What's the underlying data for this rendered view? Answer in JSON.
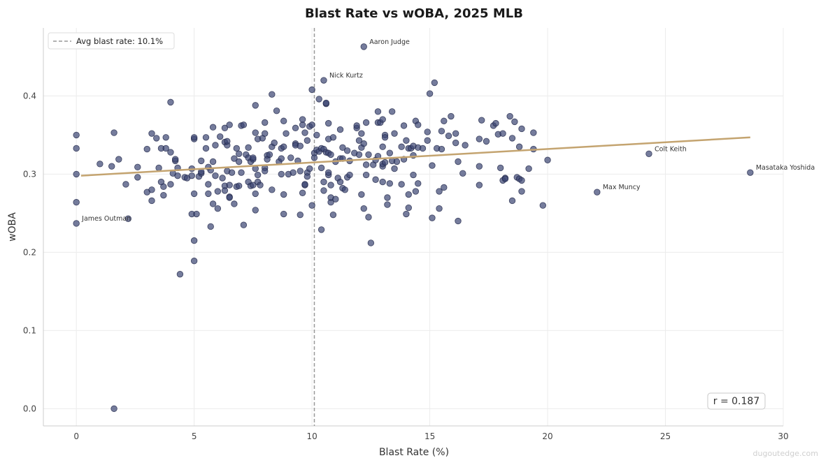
{
  "chart_data": {
    "type": "scatter",
    "title": "Blast Rate vs wOBA, 2025 MLB",
    "xlabel": "Blast Rate (%)",
    "ylabel": "wOBA",
    "xlim": [
      -1.4,
      30
    ],
    "ylim": [
      -0.022,
      0.487
    ],
    "xticks": [
      0,
      5,
      10,
      15,
      20,
      25,
      30
    ],
    "yticks": [
      0.0,
      0.1,
      0.2,
      0.3,
      0.4
    ],
    "xtick_labels": [
      "0",
      "5",
      "10",
      "15",
      "20",
      "25",
      "30"
    ],
    "ytick_labels": [
      "0.0",
      "0.1",
      "0.2",
      "0.3",
      "0.4"
    ],
    "grid": true,
    "point_color": "#3a4572",
    "trend_color": "#c4a470",
    "trendline": {
      "x": [
        0.2,
        28.6
      ],
      "y": [
        0.298,
        0.347
      ]
    },
    "avg_line": {
      "x": 10.1,
      "label": "Avg blast rate: 10.1%",
      "color": "#999999"
    },
    "legend_position": "top-left",
    "correlation_label": "r = 0.187",
    "annotations": [
      {
        "label": "Aaron Judge",
        "x": 12.2,
        "y": 0.463
      },
      {
        "label": "Nick Kurtz",
        "x": 10.5,
        "y": 0.42
      },
      {
        "label": "Colt Keith",
        "x": 24.3,
        "y": 0.326
      },
      {
        "label": "Masataka Yoshida",
        "x": 28.6,
        "y": 0.302
      },
      {
        "label": "Max Muncy",
        "x": 22.1,
        "y": 0.277
      },
      {
        "label": "James Outman",
        "x": 0.0,
        "y": 0.237
      }
    ],
    "points": [
      [
        0,
        0.35
      ],
      [
        0,
        0.333
      ],
      [
        0,
        0.3
      ],
      [
        0,
        0.264
      ],
      [
        0,
        0.237
      ],
      [
        1.0,
        0.313
      ],
      [
        1.5,
        0.31
      ],
      [
        1.6,
        0.353
      ],
      [
        1.6,
        0.0
      ],
      [
        1.8,
        0.319
      ],
      [
        2.1,
        0.287
      ],
      [
        2.2,
        0.243
      ],
      [
        2.6,
        0.296
      ],
      [
        2.6,
        0.309
      ],
      [
        3.0,
        0.332
      ],
      [
        3.0,
        0.277
      ],
      [
        3.2,
        0.352
      ],
      [
        3.2,
        0.28
      ],
      [
        3.2,
        0.266
      ],
      [
        3.4,
        0.346
      ],
      [
        3.5,
        0.308
      ],
      [
        3.6,
        0.333
      ],
      [
        3.6,
        0.29
      ],
      [
        3.7,
        0.284
      ],
      [
        3.7,
        0.273
      ],
      [
        3.8,
        0.333
      ],
      [
        3.8,
        0.347
      ],
      [
        4.0,
        0.392
      ],
      [
        4.0,
        0.328
      ],
      [
        4.0,
        0.287
      ],
      [
        4.1,
        0.301
      ],
      [
        4.2,
        0.317
      ],
      [
        4.2,
        0.319
      ],
      [
        4.3,
        0.308
      ],
      [
        4.3,
        0.298
      ],
      [
        4.4,
        0.172
      ],
      [
        4.6,
        0.296
      ],
      [
        4.7,
        0.295
      ],
      [
        4.9,
        0.298
      ],
      [
        4.9,
        0.307
      ],
      [
        4.9,
        0.249
      ],
      [
        5.0,
        0.275
      ],
      [
        5.0,
        0.215
      ],
      [
        5.0,
        0.189
      ],
      [
        5.0,
        0.345
      ],
      [
        5.0,
        0.347
      ],
      [
        5.1,
        0.249
      ],
      [
        5.2,
        0.297
      ],
      [
        5.3,
        0.317
      ],
      [
        5.3,
        0.301
      ],
      [
        5.3,
        0.303
      ],
      [
        5.5,
        0.333
      ],
      [
        5.5,
        0.347
      ],
      [
        5.6,
        0.309
      ],
      [
        5.6,
        0.287
      ],
      [
        5.6,
        0.275
      ],
      [
        5.7,
        0.233
      ],
      [
        5.7,
        0.305
      ],
      [
        5.8,
        0.262
      ],
      [
        5.8,
        0.316
      ],
      [
        5.8,
        0.36
      ],
      [
        5.9,
        0.337
      ],
      [
        5.9,
        0.298
      ],
      [
        6.0,
        0.256
      ],
      [
        6.0,
        0.278
      ],
      [
        6.1,
        0.348
      ],
      [
        6.2,
        0.295
      ],
      [
        6.3,
        0.285
      ],
      [
        6.3,
        0.359
      ],
      [
        6.3,
        0.341
      ],
      [
        6.3,
        0.279
      ],
      [
        6.4,
        0.337
      ],
      [
        6.4,
        0.342
      ],
      [
        6.4,
        0.304
      ],
      [
        6.5,
        0.271
      ],
      [
        6.5,
        0.27
      ],
      [
        6.5,
        0.286
      ],
      [
        6.5,
        0.363
      ],
      [
        6.6,
        0.302
      ],
      [
        6.7,
        0.262
      ],
      [
        6.7,
        0.32
      ],
      [
        6.8,
        0.333
      ],
      [
        6.8,
        0.284
      ],
      [
        6.9,
        0.326
      ],
      [
        6.9,
        0.316
      ],
      [
        6.9,
        0.285
      ],
      [
        7.0,
        0.302
      ],
      [
        7.0,
        0.362
      ],
      [
        7.1,
        0.235
      ],
      [
        7.1,
        0.363
      ],
      [
        7.2,
        0.325
      ],
      [
        7.3,
        0.29
      ],
      [
        7.3,
        0.334
      ],
      [
        7.3,
        0.321
      ],
      [
        7.4,
        0.285
      ],
      [
        7.4,
        0.316
      ],
      [
        7.5,
        0.319
      ],
      [
        7.5,
        0.321
      ],
      [
        7.5,
        0.286
      ],
      [
        7.6,
        0.388
      ],
      [
        7.6,
        0.353
      ],
      [
        7.6,
        0.307
      ],
      [
        7.6,
        0.275
      ],
      [
        7.6,
        0.254
      ],
      [
        7.7,
        0.29
      ],
      [
        7.7,
        0.299
      ],
      [
        7.7,
        0.345
      ],
      [
        7.8,
        0.286
      ],
      [
        7.9,
        0.346
      ],
      [
        8.0,
        0.308
      ],
      [
        8.0,
        0.366
      ],
      [
        8.0,
        0.304
      ],
      [
        8.0,
        0.352
      ],
      [
        8.1,
        0.324
      ],
      [
        8.1,
        0.319
      ],
      [
        8.2,
        0.325
      ],
      [
        8.3,
        0.28
      ],
      [
        8.3,
        0.335
      ],
      [
        8.3,
        0.402
      ],
      [
        8.4,
        0.34
      ],
      [
        8.5,
        0.381
      ],
      [
        8.6,
        0.316
      ],
      [
        8.7,
        0.3
      ],
      [
        8.7,
        0.333
      ],
      [
        8.7,
        0.32
      ],
      [
        8.8,
        0.249
      ],
      [
        8.8,
        0.274
      ],
      [
        8.8,
        0.335
      ],
      [
        8.8,
        0.368
      ],
      [
        8.9,
        0.352
      ],
      [
        9.0,
        0.3
      ],
      [
        9.1,
        0.321
      ],
      [
        9.2,
        0.302
      ],
      [
        9.3,
        0.339
      ],
      [
        9.3,
        0.337
      ],
      [
        9.3,
        0.359
      ],
      [
        9.4,
        0.317
      ],
      [
        9.5,
        0.336
      ],
      [
        9.5,
        0.248
      ],
      [
        9.5,
        0.304
      ],
      [
        9.6,
        0.363
      ],
      [
        9.6,
        0.37
      ],
      [
        9.6,
        0.276
      ],
      [
        9.7,
        0.286
      ],
      [
        9.7,
        0.287
      ],
      [
        9.7,
        0.353
      ],
      [
        9.8,
        0.343
      ],
      [
        9.8,
        0.302
      ],
      [
        9.8,
        0.297
      ],
      [
        9.9,
        0.361
      ],
      [
        9.9,
        0.307
      ],
      [
        10.0,
        0.408
      ],
      [
        10.0,
        0.363
      ],
      [
        10.0,
        0.26
      ],
      [
        10.1,
        0.327
      ],
      [
        10.1,
        0.321
      ],
      [
        10.2,
        0.35
      ],
      [
        10.2,
        0.331
      ],
      [
        10.3,
        0.396
      ],
      [
        10.3,
        0.329
      ],
      [
        10.4,
        0.333
      ],
      [
        10.4,
        0.308
      ],
      [
        10.4,
        0.229
      ],
      [
        10.5,
        0.42
      ],
      [
        10.5,
        0.332
      ],
      [
        10.5,
        0.29
      ],
      [
        10.5,
        0.279
      ],
      [
        10.6,
        0.39
      ],
      [
        10.6,
        0.391
      ],
      [
        10.6,
        0.328
      ],
      [
        10.7,
        0.365
      ],
      [
        10.7,
        0.345
      ],
      [
        10.7,
        0.299
      ],
      [
        10.7,
        0.327
      ],
      [
        10.7,
        0.302
      ],
      [
        10.8,
        0.264
      ],
      [
        10.8,
        0.325
      ],
      [
        10.8,
        0.286
      ],
      [
        10.8,
        0.27
      ],
      [
        10.9,
        0.248
      ],
      [
        10.9,
        0.347
      ],
      [
        11.0,
        0.268
      ],
      [
        11.0,
        0.316
      ],
      [
        11.1,
        0.295
      ],
      [
        11.2,
        0.357
      ],
      [
        11.2,
        0.32
      ],
      [
        11.2,
        0.29
      ],
      [
        11.3,
        0.282
      ],
      [
        11.3,
        0.334
      ],
      [
        11.3,
        0.32
      ],
      [
        11.4,
        0.28
      ],
      [
        11.5,
        0.296
      ],
      [
        11.5,
        0.33
      ],
      [
        11.6,
        0.317
      ],
      [
        11.6,
        0.299
      ],
      [
        11.8,
        0.327
      ],
      [
        11.9,
        0.359
      ],
      [
        11.9,
        0.362
      ],
      [
        12.0,
        0.343
      ],
      [
        12.0,
        0.325
      ],
      [
        12.1,
        0.334
      ],
      [
        12.1,
        0.352
      ],
      [
        12.1,
        0.274
      ],
      [
        12.2,
        0.463
      ],
      [
        12.2,
        0.339
      ],
      [
        12.2,
        0.256
      ],
      [
        12.3,
        0.299
      ],
      [
        12.3,
        0.366
      ],
      [
        12.3,
        0.312
      ],
      [
        12.4,
        0.245
      ],
      [
        12.4,
        0.325
      ],
      [
        12.5,
        0.212
      ],
      [
        12.6,
        0.312
      ],
      [
        12.7,
        0.318
      ],
      [
        12.7,
        0.293
      ],
      [
        12.8,
        0.38
      ],
      [
        12.8,
        0.366
      ],
      [
        12.8,
        0.323
      ],
      [
        12.9,
        0.366
      ],
      [
        13.0,
        0.31
      ],
      [
        13.0,
        0.335
      ],
      [
        13.0,
        0.37
      ],
      [
        13.0,
        0.313
      ],
      [
        13.0,
        0.29
      ],
      [
        13.1,
        0.315
      ],
      [
        13.1,
        0.35
      ],
      [
        13.1,
        0.347
      ],
      [
        13.2,
        0.261
      ],
      [
        13.2,
        0.27
      ],
      [
        13.3,
        0.288
      ],
      [
        13.3,
        0.327
      ],
      [
        13.4,
        0.38
      ],
      [
        13.4,
        0.317
      ],
      [
        13.5,
        0.352
      ],
      [
        13.5,
        0.307
      ],
      [
        13.6,
        0.316
      ],
      [
        13.8,
        0.335
      ],
      [
        13.8,
        0.287
      ],
      [
        13.9,
        0.362
      ],
      [
        13.9,
        0.319
      ],
      [
        14.0,
        0.249
      ],
      [
        14.0,
        0.343
      ],
      [
        14.1,
        0.257
      ],
      [
        14.1,
        0.274
      ],
      [
        14.1,
        0.333
      ],
      [
        14.2,
        0.333
      ],
      [
        14.3,
        0.324
      ],
      [
        14.3,
        0.336
      ],
      [
        14.3,
        0.299
      ],
      [
        14.4,
        0.278
      ],
      [
        14.4,
        0.368
      ],
      [
        14.5,
        0.363
      ],
      [
        14.5,
        0.288
      ],
      [
        14.5,
        0.334
      ],
      [
        14.7,
        0.333
      ],
      [
        14.9,
        0.354
      ],
      [
        14.9,
        0.343
      ],
      [
        15.0,
        0.403
      ],
      [
        15.1,
        0.311
      ],
      [
        15.1,
        0.244
      ],
      [
        15.2,
        0.417
      ],
      [
        15.3,
        0.333
      ],
      [
        15.4,
        0.278
      ],
      [
        15.4,
        0.256
      ],
      [
        15.5,
        0.332
      ],
      [
        15.5,
        0.355
      ],
      [
        15.6,
        0.283
      ],
      [
        15.6,
        0.368
      ],
      [
        15.8,
        0.349
      ],
      [
        15.9,
        0.374
      ],
      [
        16.1,
        0.352
      ],
      [
        16.1,
        0.34
      ],
      [
        16.2,
        0.316
      ],
      [
        16.2,
        0.24
      ],
      [
        16.4,
        0.301
      ],
      [
        16.5,
        0.337
      ],
      [
        17.1,
        0.345
      ],
      [
        17.1,
        0.31
      ],
      [
        17.1,
        0.286
      ],
      [
        17.2,
        0.369
      ],
      [
        17.4,
        0.342
      ],
      [
        17.7,
        0.362
      ],
      [
        17.8,
        0.365
      ],
      [
        17.9,
        0.351
      ],
      [
        18.0,
        0.308
      ],
      [
        18.1,
        0.292
      ],
      [
        18.1,
        0.352
      ],
      [
        18.2,
        0.295
      ],
      [
        18.2,
        0.294
      ],
      [
        18.4,
        0.374
      ],
      [
        18.5,
        0.266
      ],
      [
        18.5,
        0.346
      ],
      [
        18.6,
        0.367
      ],
      [
        18.7,
        0.296
      ],
      [
        18.8,
        0.335
      ],
      [
        18.8,
        0.294
      ],
      [
        18.9,
        0.358
      ],
      [
        18.9,
        0.278
      ],
      [
        18.9,
        0.292
      ],
      [
        19.2,
        0.307
      ],
      [
        19.4,
        0.353
      ],
      [
        19.4,
        0.332
      ],
      [
        19.8,
        0.26
      ],
      [
        20.0,
        0.318
      ],
      [
        22.1,
        0.277
      ],
      [
        24.3,
        0.326
      ],
      [
        28.6,
        0.302
      ]
    ]
  },
  "watermark": "dugoutedge.com"
}
